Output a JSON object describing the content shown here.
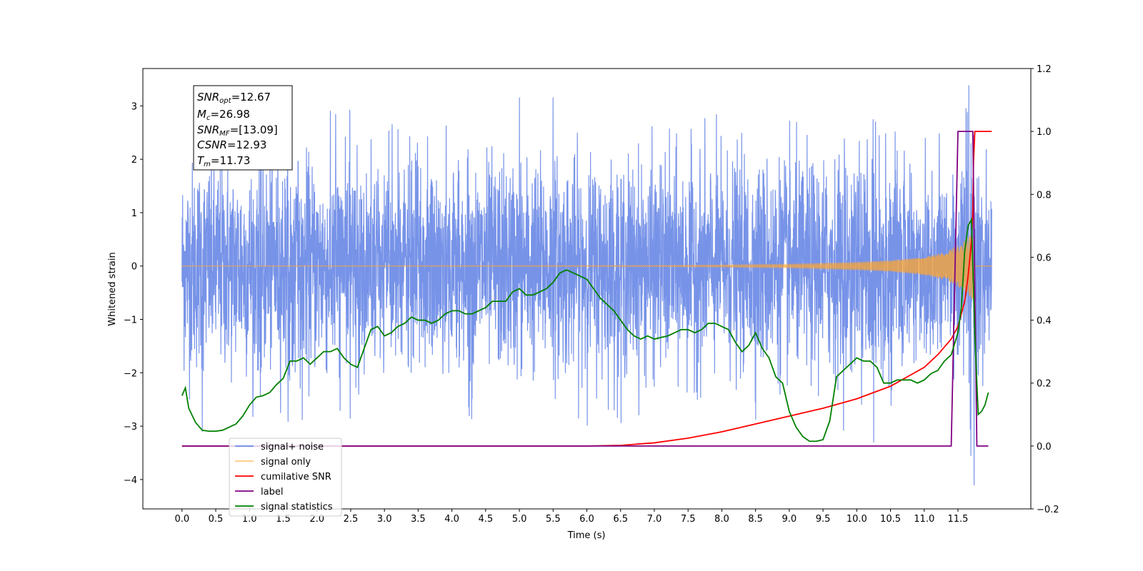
{
  "chart_data": {
    "type": "line",
    "title": "",
    "xlabel": "Time (s)",
    "ylabel": "Whitened strain",
    "y2label": "",
    "xlim": [
      -0.58,
      12.58
    ],
    "ylim": [
      -4.55,
      3.7
    ],
    "y2lim": [
      -0.2,
      1.2
    ],
    "x_ticks": [
      0.0,
      0.5,
      1.0,
      1.5,
      2.0,
      2.5,
      3.0,
      3.5,
      4.0,
      4.5,
      5.0,
      5.5,
      6.0,
      6.5,
      7.0,
      7.5,
      8.0,
      8.5,
      9.0,
      9.5,
      10.0,
      10.5,
      11.0,
      11.5
    ],
    "x_tick_labels": [
      "0.0",
      "0.5",
      "1.0",
      "1.5",
      "2.0",
      "2.5",
      "3.0",
      "3.5",
      "4.0",
      "4.5",
      "5.0",
      "5.5",
      "6.0",
      "6.5",
      "7.0",
      "7.5",
      "8.0",
      "8.5",
      "9.0",
      "9.5",
      "10.0",
      "10.5",
      "11.0",
      "11.5"
    ],
    "y_ticks": [
      -4,
      -3,
      -2,
      -1,
      0,
      1,
      2,
      3
    ],
    "y_tick_labels": [
      "−4",
      "−3",
      "−2",
      "−1",
      "0",
      "1",
      "2",
      "3"
    ],
    "y2_ticks": [
      -0.2,
      0.0,
      0.2,
      0.4,
      0.6,
      0.8,
      1.0,
      1.2
    ],
    "y2_tick_labels": [
      "−0.2",
      "0.0",
      "0.2",
      "0.4",
      "0.6",
      "0.8",
      "1.0",
      "1.2"
    ],
    "grid": false,
    "legend_position": "lower-left",
    "colors": {
      "signal_noise": "#6b8ae6",
      "signal_only": "#ffa530",
      "cumulative_snr": "#ff0000",
      "label": "#800080",
      "signal_statistics": "#008000"
    },
    "annotation": {
      "snr_opt": {
        "name": "SNR",
        "sub": "opt",
        "value": "=12.67"
      },
      "mc": {
        "name": "M",
        "sub": "c",
        "value": "=26.98"
      },
      "snr_mf": {
        "name": "SNR",
        "sub": "MF",
        "value": "=[13.09]"
      },
      "csnr": {
        "name": "CSNR",
        "sub": "",
        "value": "=12.93"
      },
      "tm": {
        "name": "T",
        "sub": "m",
        "value": "=11.73"
      }
    },
    "series": [
      {
        "name": "signal+ noise",
        "axis": "left",
        "description_envelope": {
          "x": [
            0.0,
            11.4,
            11.55,
            11.62,
            11.66,
            11.7,
            11.75,
            11.8,
            12.0
          ],
          "max_abs": [
            2.9,
            3.1,
            3.0,
            3.38,
            3.0,
            2.5,
            4.1,
            2.6,
            2.4
          ]
        }
      },
      {
        "name": "signal only",
        "axis": "left",
        "envelope": {
          "x": [
            0.0,
            7.0,
            8.0,
            9.0,
            10.0,
            10.5,
            11.0,
            11.3,
            11.5,
            11.62,
            11.7,
            11.73,
            11.76
          ],
          "amp": [
            0.0,
            0.01,
            0.02,
            0.035,
            0.07,
            0.1,
            0.16,
            0.25,
            0.38,
            0.5,
            0.6,
            0.62,
            0.0
          ]
        }
      },
      {
        "name": "cumilative SNR",
        "axis": "right",
        "x": [
          0.0,
          6.0,
          6.5,
          7.0,
          7.5,
          8.0,
          8.5,
          9.0,
          9.5,
          10.0,
          10.5,
          11.0,
          11.2,
          11.4,
          11.5,
          11.6,
          11.65,
          11.7,
          11.72,
          11.73,
          11.75,
          12.0
        ],
        "y": [
          0.0,
          0.0,
          0.002,
          0.01,
          0.025,
          0.045,
          0.07,
          0.095,
          0.12,
          0.15,
          0.19,
          0.25,
          0.29,
          0.34,
          0.38,
          0.46,
          0.54,
          0.65,
          0.75,
          0.9,
          1.0,
          1.0
        ]
      },
      {
        "name": "label",
        "axis": "right",
        "x": [
          0.0,
          11.4,
          11.5,
          11.72,
          11.78,
          11.95
        ],
        "y": [
          0.0,
          0.0,
          1.0,
          1.0,
          0.0,
          0.0
        ]
      },
      {
        "name": "signal statistics",
        "axis": "right",
        "x": [
          0.0,
          0.05,
          0.1,
          0.2,
          0.3,
          0.4,
          0.5,
          0.6,
          0.7,
          0.8,
          0.9,
          1.0,
          1.1,
          1.2,
          1.3,
          1.4,
          1.5,
          1.6,
          1.7,
          1.8,
          1.9,
          2.0,
          2.1,
          2.2,
          2.3,
          2.4,
          2.5,
          2.6,
          2.7,
          2.8,
          2.9,
          3.0,
          3.1,
          3.2,
          3.3,
          3.4,
          3.5,
          3.6,
          3.7,
          3.8,
          3.9,
          4.0,
          4.1,
          4.2,
          4.3,
          4.4,
          4.5,
          4.6,
          4.7,
          4.8,
          4.9,
          5.0,
          5.1,
          5.2,
          5.3,
          5.4,
          5.5,
          5.6,
          5.7,
          5.8,
          5.9,
          6.0,
          6.1,
          6.2,
          6.3,
          6.4,
          6.5,
          6.6,
          6.7,
          6.8,
          6.9,
          7.0,
          7.1,
          7.2,
          7.3,
          7.4,
          7.5,
          7.6,
          7.7,
          7.8,
          7.9,
          8.0,
          8.1,
          8.2,
          8.3,
          8.4,
          8.5,
          8.6,
          8.7,
          8.8,
          8.9,
          9.0,
          9.1,
          9.2,
          9.3,
          9.4,
          9.5,
          9.6,
          9.7,
          9.8,
          9.9,
          10.0,
          10.1,
          10.2,
          10.3,
          10.4,
          10.5,
          10.6,
          10.7,
          10.8,
          10.9,
          11.0,
          11.1,
          11.2,
          11.3,
          11.4,
          11.5,
          11.55,
          11.6,
          11.65,
          11.7,
          11.75,
          11.8,
          11.85,
          11.9,
          11.95
        ],
        "y": [
          0.16,
          0.185,
          0.12,
          0.075,
          0.05,
          0.047,
          0.047,
          0.05,
          0.06,
          0.07,
          0.095,
          0.13,
          0.155,
          0.16,
          0.17,
          0.195,
          0.215,
          0.27,
          0.27,
          0.28,
          0.26,
          0.28,
          0.3,
          0.3,
          0.31,
          0.28,
          0.26,
          0.25,
          0.31,
          0.37,
          0.38,
          0.35,
          0.36,
          0.38,
          0.39,
          0.41,
          0.4,
          0.4,
          0.39,
          0.4,
          0.42,
          0.43,
          0.43,
          0.42,
          0.42,
          0.43,
          0.44,
          0.46,
          0.46,
          0.46,
          0.49,
          0.5,
          0.48,
          0.48,
          0.49,
          0.5,
          0.52,
          0.55,
          0.56,
          0.55,
          0.54,
          0.53,
          0.5,
          0.47,
          0.45,
          0.43,
          0.4,
          0.37,
          0.35,
          0.34,
          0.35,
          0.34,
          0.345,
          0.35,
          0.36,
          0.37,
          0.37,
          0.36,
          0.37,
          0.39,
          0.39,
          0.38,
          0.37,
          0.33,
          0.3,
          0.32,
          0.36,
          0.31,
          0.28,
          0.22,
          0.2,
          0.11,
          0.06,
          0.03,
          0.015,
          0.015,
          0.02,
          0.08,
          0.22,
          0.24,
          0.26,
          0.28,
          0.27,
          0.27,
          0.25,
          0.2,
          0.2,
          0.21,
          0.21,
          0.21,
          0.2,
          0.21,
          0.23,
          0.24,
          0.27,
          0.29,
          0.36,
          0.44,
          0.62,
          0.7,
          0.72,
          0.35,
          0.1,
          0.11,
          0.13,
          0.17
        ]
      }
    ]
  }
}
